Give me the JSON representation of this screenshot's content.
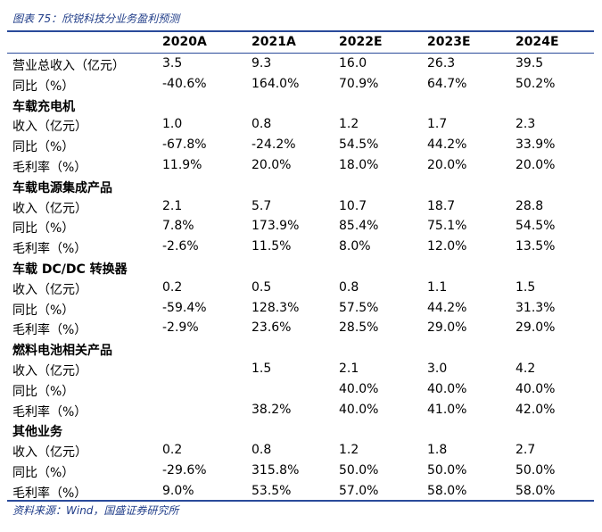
{
  "caption": "图表 75：欣锐科技分业务盈利预测",
  "columns": [
    "2020A",
    "2021A",
    "2022E",
    "2023E",
    "2024E"
  ],
  "rows": [
    {
      "label": "营业总收入（亿元）",
      "values": [
        "3.5",
        "9.3",
        "16.0",
        "26.3",
        "39.5"
      ]
    },
    {
      "label": "同比（%）",
      "values": [
        "-40.6%",
        "164.0%",
        "70.9%",
        "64.7%",
        "50.2%"
      ]
    },
    {
      "label": "车载充电机",
      "section": true,
      "values": [
        "",
        "",
        "",
        "",
        ""
      ]
    },
    {
      "label": "收入（亿元）",
      "values": [
        "1.0",
        "0.8",
        "1.2",
        "1.7",
        "2.3"
      ]
    },
    {
      "label": "同比（%）",
      "values": [
        "-67.8%",
        "-24.2%",
        "54.5%",
        "44.2%",
        "33.9%"
      ]
    },
    {
      "label": "毛利率（%）",
      "values": [
        "11.9%",
        "20.0%",
        "18.0%",
        "20.0%",
        "20.0%"
      ]
    },
    {
      "label": "车载电源集成产品",
      "section": true,
      "values": [
        "",
        "",
        "",
        "",
        ""
      ]
    },
    {
      "label": "收入（亿元）",
      "values": [
        "2.1",
        "5.7",
        "10.7",
        "18.7",
        "28.8"
      ]
    },
    {
      "label": "同比（%）",
      "values": [
        "7.8%",
        "173.9%",
        "85.4%",
        "75.1%",
        "54.5%"
      ]
    },
    {
      "label": "毛利率（%）",
      "values": [
        "-2.6%",
        "11.5%",
        "8.0%",
        "12.0%",
        "13.5%"
      ]
    },
    {
      "label": "车载 DC/DC 转换器",
      "section": true,
      "values": [
        "",
        "",
        "",
        "",
        ""
      ]
    },
    {
      "label": "收入（亿元）",
      "values": [
        "0.2",
        "0.5",
        "0.8",
        "1.1",
        "1.5"
      ]
    },
    {
      "label": "同比（%）",
      "values": [
        "-59.4%",
        "128.3%",
        "57.5%",
        "44.2%",
        "31.3%"
      ]
    },
    {
      "label": "毛利率（%）",
      "values": [
        "-2.9%",
        "23.6%",
        "28.5%",
        "29.0%",
        "29.0%"
      ]
    },
    {
      "label": "燃料电池相关产品",
      "section": true,
      "values": [
        "",
        "",
        "",
        "",
        ""
      ]
    },
    {
      "label": "收入（亿元）",
      "values": [
        "",
        "1.5",
        "2.1",
        "3.0",
        "4.2"
      ]
    },
    {
      "label": "同比（%）",
      "values": [
        "",
        "",
        "40.0%",
        "40.0%",
        "40.0%"
      ]
    },
    {
      "label": "毛利率（%）",
      "values": [
        "",
        "38.2%",
        "40.0%",
        "41.0%",
        "42.0%"
      ]
    },
    {
      "label": "其他业务",
      "section": true,
      "values": [
        "",
        "",
        "",
        "",
        ""
      ]
    },
    {
      "label": "收入（亿元）",
      "values": [
        "0.2",
        "0.8",
        "1.2",
        "1.8",
        "2.7"
      ]
    },
    {
      "label": "同比（%）",
      "values": [
        "-29.6%",
        "315.8%",
        "50.0%",
        "50.0%",
        "50.0%"
      ]
    },
    {
      "label": "毛利率（%）",
      "values": [
        "9.0%",
        "53.5%",
        "57.0%",
        "58.0%",
        "58.0%"
      ]
    }
  ],
  "source": "资料来源：Wind，国盛证券研究所"
}
